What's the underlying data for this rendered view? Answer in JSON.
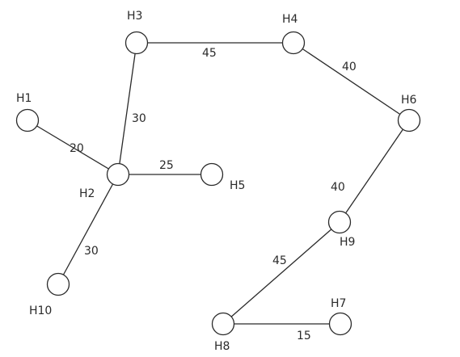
{
  "graph": {
    "nodes": [
      {
        "id": "H1",
        "label": "H1"
      },
      {
        "id": "H2",
        "label": "H2"
      },
      {
        "id": "H3",
        "label": "H3"
      },
      {
        "id": "H4",
        "label": "H4"
      },
      {
        "id": "H5",
        "label": "H5"
      },
      {
        "id": "H6",
        "label": "H6"
      },
      {
        "id": "H7",
        "label": "H7"
      },
      {
        "id": "H8",
        "label": "H8"
      },
      {
        "id": "H9",
        "label": "H9"
      },
      {
        "id": "H10",
        "label": "H10"
      }
    ],
    "edges": [
      {
        "from": "H1",
        "to": "H2",
        "weight": "20"
      },
      {
        "from": "H2",
        "to": "H3",
        "weight": "30"
      },
      {
        "from": "H3",
        "to": "H4",
        "weight": "45"
      },
      {
        "from": "H4",
        "to": "H6",
        "weight": "40"
      },
      {
        "from": "H2",
        "to": "H5",
        "weight": "25"
      },
      {
        "from": "H2",
        "to": "H10",
        "weight": "30"
      },
      {
        "from": "H6",
        "to": "H9",
        "weight": "40"
      },
      {
        "from": "H9",
        "to": "H8",
        "weight": "45"
      },
      {
        "from": "H8",
        "to": "H7",
        "weight": "15"
      }
    ]
  }
}
